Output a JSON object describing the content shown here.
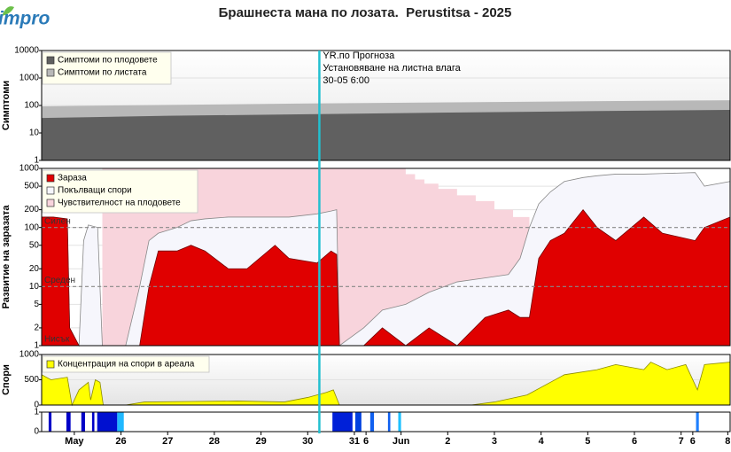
{
  "logo": "impro",
  "title": "Брашнеста мана по лозата.  Perustitsa - 2025",
  "annotation": {
    "x": 30.25,
    "color": "#22c0d0",
    "lines": [
      "YR.по Прогноза",
      "Установяване на листна влага",
      "30-05 6:00"
    ]
  },
  "chart_data": [
    {
      "type": "area",
      "y_label": "Симптоми",
      "log_y": true,
      "ylim": [
        1,
        10000
      ],
      "yticks": [
        1,
        10,
        100,
        1000,
        10000
      ],
      "xlim": [
        24.3,
        39.05
      ],
      "grid": true,
      "x": [
        24.3,
        27,
        30,
        33,
        36,
        39.05
      ],
      "series": [
        {
          "name": "Симптоми по плодовете",
          "color": "#606060",
          "values": [
            35,
            42,
            48,
            55,
            62,
            69
          ]
        },
        {
          "name": "Симптоми по листата",
          "color": "#b8b8b8",
          "values": [
            93,
            105,
            118,
            130,
            142,
            155
          ]
        }
      ]
    },
    {
      "type": "area",
      "y_label": "Развитие на заразата",
      "log_y": true,
      "ylim": [
        1,
        1000
      ],
      "yticks": [
        1,
        2,
        5,
        10,
        20,
        50,
        100,
        200,
        500,
        1000
      ],
      "xlim": [
        24.3,
        39.05
      ],
      "grid": true,
      "levels": [
        {
          "value": 100,
          "label": "Силен"
        },
        {
          "value": 10,
          "label": "Среден"
        },
        {
          "value": 1,
          "label": "Нисък"
        }
      ],
      "x": [
        24.3,
        24.55,
        24.85,
        24.9,
        25.1,
        25.2,
        25.3,
        25.5,
        25.6,
        25.65,
        26.1,
        26.4,
        26.6,
        26.8,
        27.2,
        27.5,
        27.8,
        28.3,
        28.7,
        29.3,
        29.6,
        30.2,
        30.5,
        30.62,
        30.68,
        31.2,
        31.6,
        32.1,
        32.6,
        33.2,
        33.8,
        34.3,
        34.55,
        34.75,
        34.95,
        35.2,
        35.5,
        35.9,
        36.2,
        36.6,
        37.2,
        37.6,
        38.3,
        38.5,
        39.05
      ],
      "series": [
        {
          "name": "Зараза",
          "color": "#e00000",
          "values": [
            150,
            150,
            140,
            2,
            1,
            1,
            1,
            1,
            1,
            1,
            1,
            1,
            10,
            40,
            40,
            50,
            40,
            20,
            20,
            50,
            30,
            25,
            40,
            35,
            1,
            1,
            2,
            1,
            2,
            1,
            3,
            4,
            3,
            3,
            30,
            60,
            80,
            200,
            100,
            60,
            150,
            80,
            60,
            100,
            150
          ]
        },
        {
          "name": "Покълващи спори",
          "color": "#f6f6fc",
          "values": [
            120,
            130,
            110,
            2,
            1,
            60,
            110,
            100,
            1,
            1,
            1,
            10,
            60,
            80,
            100,
            130,
            140,
            150,
            150,
            150,
            150,
            170,
            190,
            200,
            1,
            2,
            4,
            5,
            8,
            12,
            14,
            16,
            30,
            100,
            250,
            400,
            600,
            700,
            750,
            800,
            800,
            820,
            850,
            500,
            600
          ]
        },
        {
          "name": "Чувствителност на плодовете",
          "color": "#f8d4dc",
          "step": true,
          "x": [
            25.6,
            32.1,
            32.3,
            32.5,
            32.8,
            33.2,
            33.6,
            34.0,
            34.4,
            34.75
          ],
          "values": [
            1000,
            800,
            650,
            550,
            450,
            350,
            280,
            200,
            150,
            1
          ]
        }
      ]
    },
    {
      "type": "area",
      "y_label": "Спори",
      "ylim": [
        0,
        1000
      ],
      "yticks": [
        0,
        500,
        1000
      ],
      "xlim": [
        24.3,
        39.05
      ],
      "grid": true,
      "x": [
        24.3,
        24.5,
        24.85,
        24.95,
        25.1,
        25.3,
        25.35,
        25.45,
        25.55,
        25.62,
        26.1,
        26.5,
        27.5,
        28.5,
        29.5,
        30.0,
        30.4,
        30.55,
        30.68,
        33.5,
        34.0,
        34.7,
        35.1,
        35.5,
        36.2,
        36.6,
        37.2,
        37.35,
        37.7,
        38.1,
        38.35,
        38.5,
        39.05
      ],
      "series": [
        {
          "name": "Концентрация на спори в ареала",
          "color": "#ffff00",
          "values": [
            600,
            500,
            550,
            0,
            300,
            450,
            100,
            500,
            450,
            0,
            0,
            60,
            70,
            80,
            60,
            150,
            250,
            300,
            0,
            0,
            60,
            200,
            400,
            600,
            700,
            800,
            700,
            850,
            700,
            800,
            300,
            800,
            850
          ]
        }
      ]
    },
    {
      "type": "bar",
      "ylim": [
        0,
        1
      ],
      "yticks": [
        0,
        1
      ],
      "xlim": [
        24.3,
        39.05
      ],
      "xticks": [
        {
          "value": 25,
          "label": "May"
        },
        26,
        27,
        28,
        29,
        30,
        31,
        {
          "value": 31.25,
          "label": "6"
        },
        {
          "value": 32,
          "label": "Jun"
        },
        {
          "value": 33,
          "label": "2"
        },
        {
          "value": 34,
          "label": "3"
        },
        {
          "value": 35,
          "label": "4"
        },
        {
          "value": 36,
          "label": "5"
        },
        {
          "value": 37,
          "label": "6"
        },
        {
          "value": 38,
          "label": "7"
        },
        {
          "value": 38.25,
          "label": "6"
        },
        {
          "value": 39,
          "label": "8"
        }
      ],
      "x_start": [
        24.45,
        24.83,
        25.15,
        25.38,
        25.49,
        25.92,
        30.53,
        31.02,
        31.34,
        31.72,
        31.94,
        38.32
      ],
      "x_end": [
        24.51,
        24.92,
        25.23,
        25.43,
        25.92,
        26.06,
        30.96,
        31.15,
        31.42,
        31.77,
        32.0,
        38.38
      ],
      "values": [
        1,
        1,
        1,
        1,
        1,
        1,
        1,
        1,
        1,
        1,
        1,
        1
      ],
      "colors": [
        "#0000c8",
        "#0000c8",
        "#0000c8",
        "#0000c8",
        "#0010d0",
        "#20b8ff",
        "#0020d8",
        "#0040e0",
        "#1060f0",
        "#1060f0",
        "#20c0ff",
        "#2080ff"
      ]
    }
  ]
}
